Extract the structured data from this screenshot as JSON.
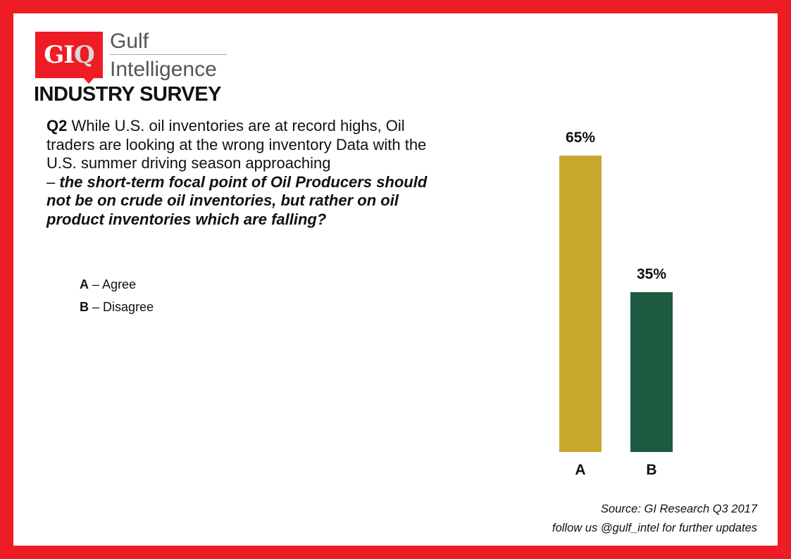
{
  "logo": {
    "mark": "GIQ",
    "line1": "Gulf",
    "line2": "Intelligence"
  },
  "header": {
    "title": "INDUSTRY SURVEY"
  },
  "question": {
    "number": "Q2",
    "text": "While U.S. oil inventories are at record highs, Oil traders are looking at the wrong inventory Data with the U.S. summer driving season approaching",
    "dash": "–",
    "emphasis": "the short-term focal point of Oil Producers should not be on crude oil inventories, but rather on oil product inventories which are falling?"
  },
  "options": [
    {
      "key": "A",
      "sep": "–",
      "label": "Agree"
    },
    {
      "key": "B",
      "sep": "–",
      "label": "Disagree"
    }
  ],
  "chart_data": {
    "type": "bar",
    "categories": [
      "A",
      "B"
    ],
    "values": [
      65,
      35
    ],
    "value_labels": [
      "65%",
      "35%"
    ],
    "colors": [
      "#c8a82c",
      "#1c5a42"
    ],
    "ylim": [
      0,
      65
    ],
    "grid": false,
    "title": "",
    "xlabel": "",
    "ylabel": ""
  },
  "footer": {
    "source": "Source: GI Research Q3 2017",
    "follow": "follow us @gulf_intel for further updates"
  }
}
